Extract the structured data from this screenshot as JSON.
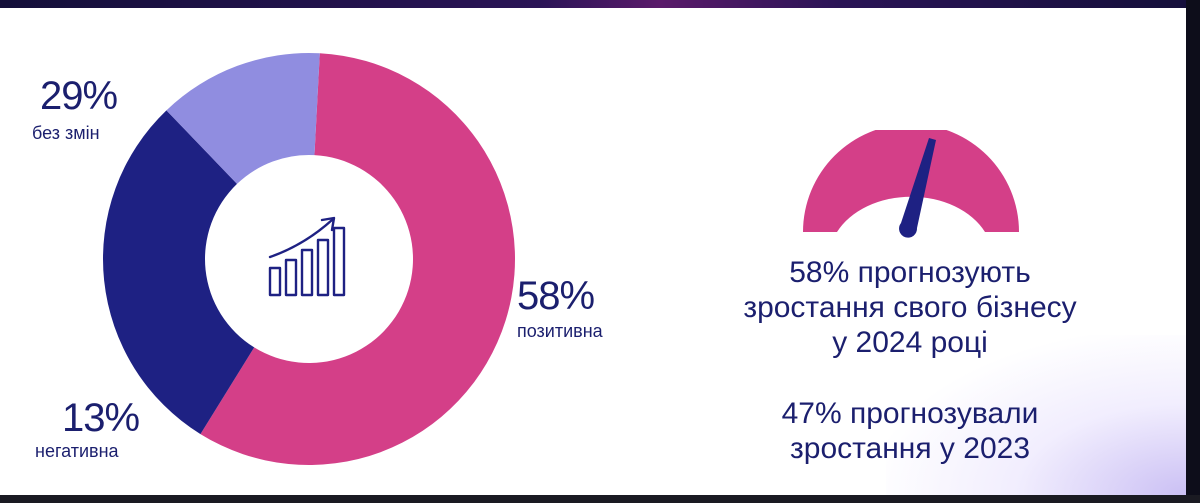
{
  "chart_data": {
    "type": "pie",
    "categories": [
      "позитивна",
      "без змін",
      "негативна"
    ],
    "values": [
      58,
      29,
      13
    ],
    "colors": [
      "#d43f88",
      "#1e2183",
      "#908de0"
    ],
    "hole": "center icon: growth-bars-icon"
  },
  "labels": {
    "positive": {
      "pct": "58%",
      "caption": "позитивна"
    },
    "unchanged": {
      "pct": "29%",
      "caption": "без змін"
    },
    "negative": {
      "pct": "13%",
      "caption": "негативна"
    }
  },
  "gauge": {
    "arc_color": "#d43f88",
    "needle_color": "#1e2183"
  },
  "forecast": {
    "line1": "58% прогнозують",
    "line2": "зростання свого бізнесу",
    "line3": "у 2024 році",
    "line4": "47% прогнозували",
    "line5": "зростання у 2023"
  },
  "icons": [
    "growth-bars-icon",
    "gauge-icon"
  ]
}
